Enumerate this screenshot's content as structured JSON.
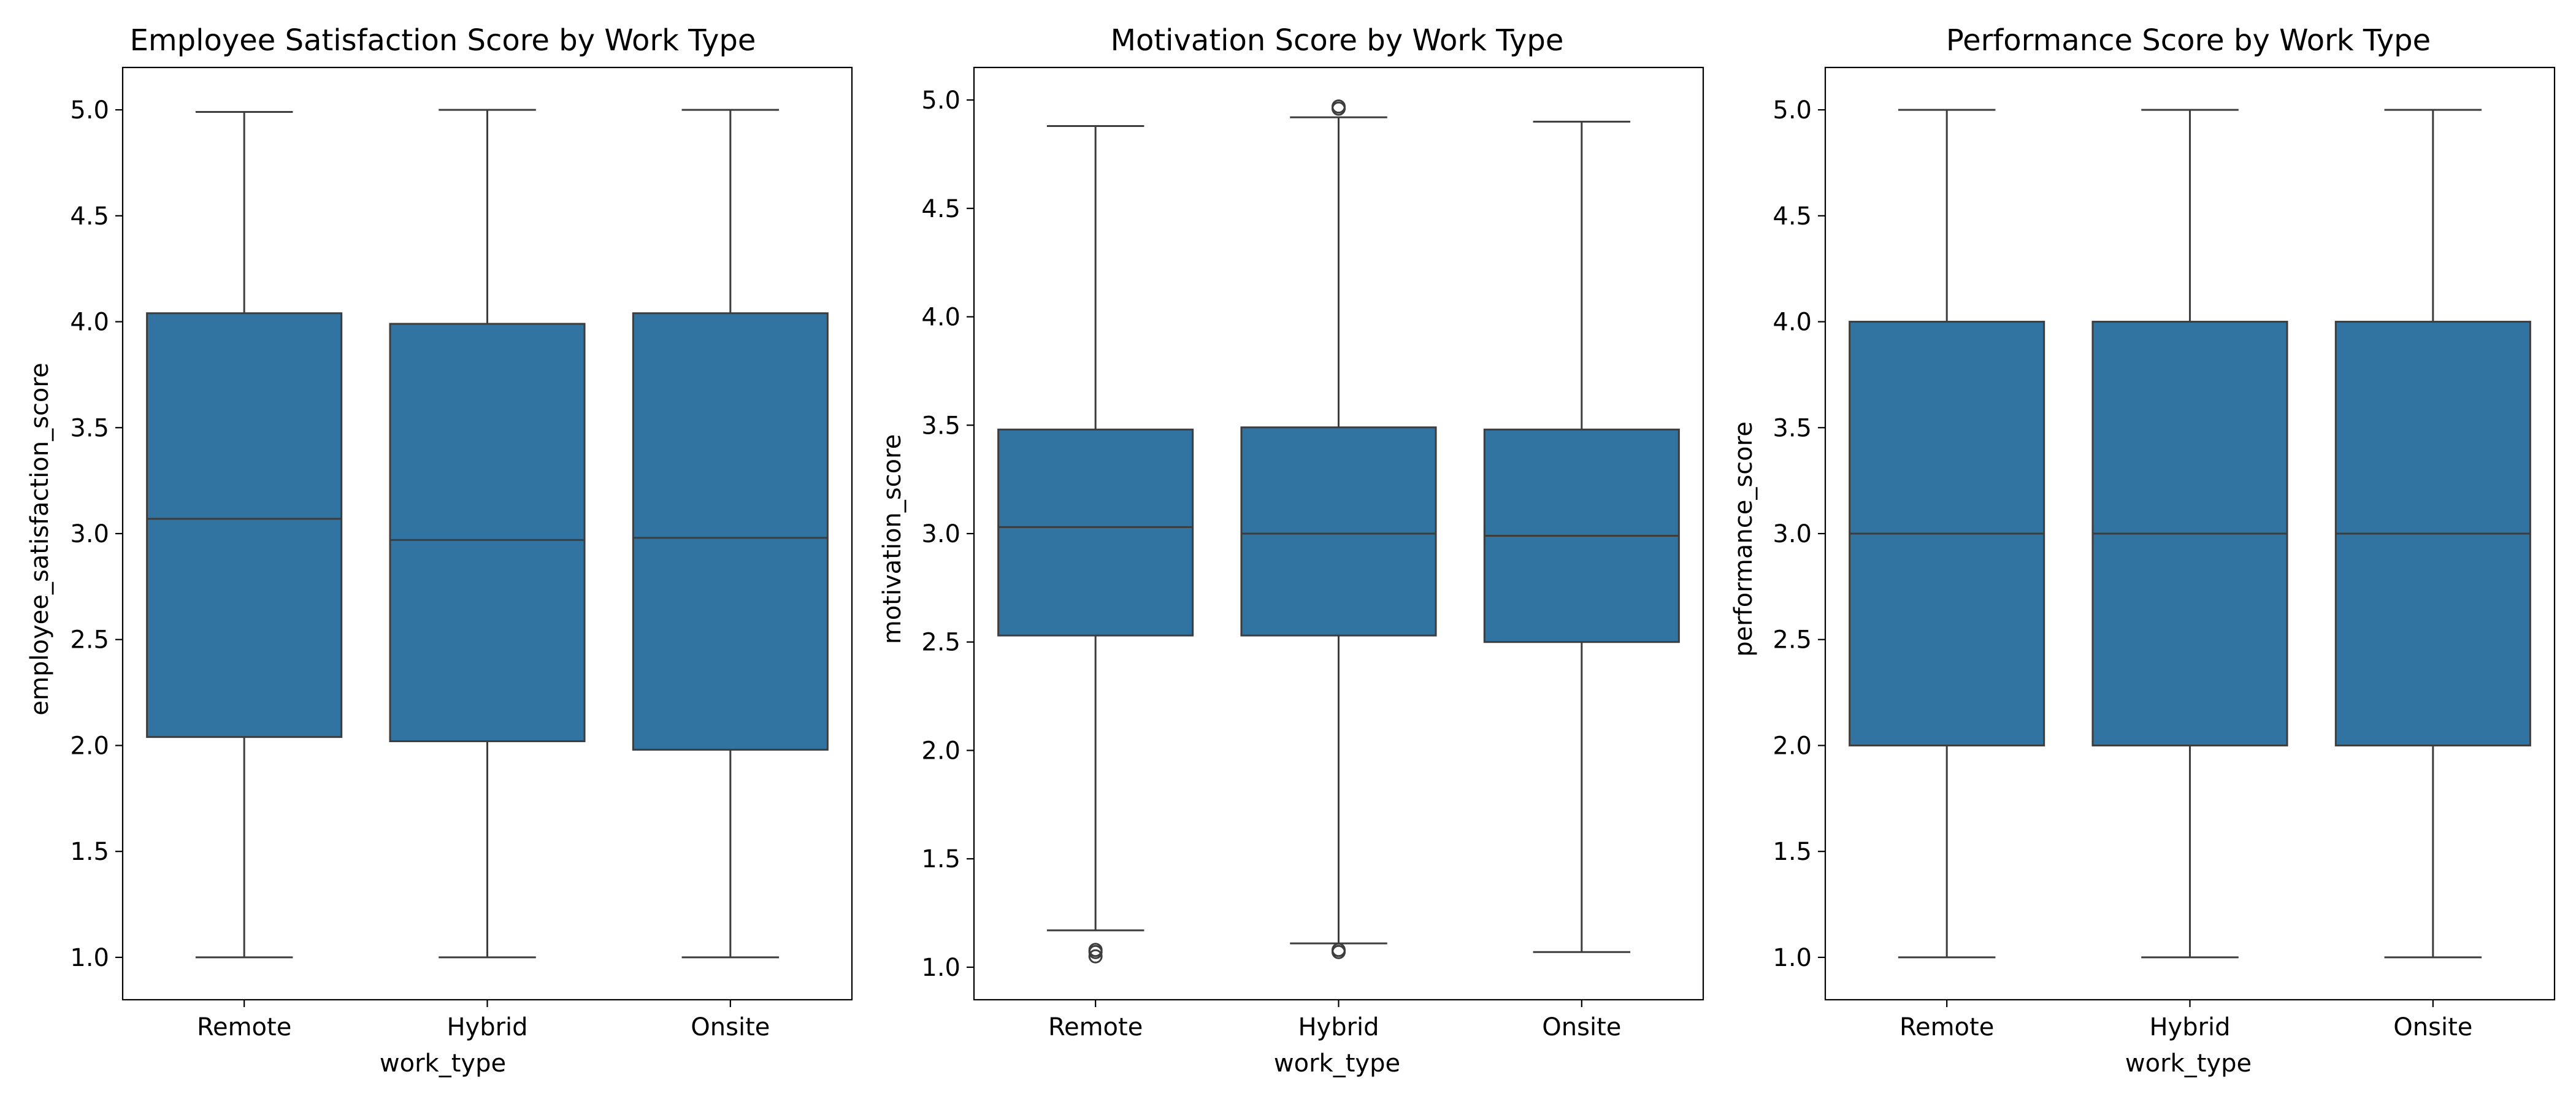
{
  "colors": {
    "box_fill": "#3274a1",
    "line": "#3d3d3d",
    "axes": "#000000",
    "background": "#ffffff"
  },
  "chart_data": [
    {
      "type": "box",
      "title": "Employee Satisfaction Score by Work Type",
      "xlabel": "work_type",
      "ylabel": "employee_satisfaction_score",
      "ylim": [
        0.8,
        5.2
      ],
      "yticks": [
        "1.0",
        "1.5",
        "2.0",
        "2.5",
        "3.0",
        "3.5",
        "4.0",
        "4.5",
        "5.0"
      ],
      "categories": [
        "Remote",
        "Hybrid",
        "Onsite"
      ],
      "boxes": [
        {
          "category": "Remote",
          "whisker_low": 1.0,
          "q1": 2.04,
          "median": 3.07,
          "q3": 4.04,
          "whisker_high": 4.99,
          "fliers": []
        },
        {
          "category": "Hybrid",
          "whisker_low": 1.0,
          "q1": 2.02,
          "median": 2.97,
          "q3": 3.99,
          "whisker_high": 5.0,
          "fliers": []
        },
        {
          "category": "Onsite",
          "whisker_low": 1.0,
          "q1": 1.98,
          "median": 2.98,
          "q3": 4.04,
          "whisker_high": 5.0,
          "fliers": []
        }
      ],
      "grid": false
    },
    {
      "type": "box",
      "title": "Motivation Score by Work Type",
      "xlabel": "work_type",
      "ylabel": "motivation_score",
      "ylim": [
        0.85,
        5.15
      ],
      "yticks": [
        "1.0",
        "1.5",
        "2.0",
        "2.5",
        "3.0",
        "3.5",
        "4.0",
        "4.5",
        "5.0"
      ],
      "categories": [
        "Remote",
        "Hybrid",
        "Onsite"
      ],
      "boxes": [
        {
          "category": "Remote",
          "whisker_low": 1.17,
          "q1": 2.53,
          "median": 3.03,
          "q3": 3.48,
          "whisker_high": 4.88,
          "fliers": [
            1.05,
            1.07,
            1.08
          ]
        },
        {
          "category": "Hybrid",
          "whisker_low": 1.11,
          "q1": 2.53,
          "median": 3.0,
          "q3": 3.49,
          "whisker_high": 4.92,
          "fliers": [
            1.07,
            1.08,
            4.96,
            4.97
          ]
        },
        {
          "category": "Onsite",
          "whisker_low": 1.07,
          "q1": 2.5,
          "median": 2.99,
          "q3": 3.48,
          "whisker_high": 4.9,
          "fliers": []
        }
      ],
      "grid": false
    },
    {
      "type": "box",
      "title": "Performance Score by Work Type",
      "xlabel": "work_type",
      "ylabel": "performance_score",
      "ylim": [
        0.8,
        5.2
      ],
      "yticks": [
        "1.0",
        "1.5",
        "2.0",
        "2.5",
        "3.0",
        "3.5",
        "4.0",
        "4.5",
        "5.0"
      ],
      "categories": [
        "Remote",
        "Hybrid",
        "Onsite"
      ],
      "boxes": [
        {
          "category": "Remote",
          "whisker_low": 1.0,
          "q1": 2.0,
          "median": 3.0,
          "q3": 4.0,
          "whisker_high": 5.0,
          "fliers": []
        },
        {
          "category": "Hybrid",
          "whisker_low": 1.0,
          "q1": 2.0,
          "median": 3.0,
          "q3": 4.0,
          "whisker_high": 5.0,
          "fliers": []
        },
        {
          "category": "Onsite",
          "whisker_low": 1.0,
          "q1": 2.0,
          "median": 3.0,
          "q3": 4.0,
          "whisker_high": 5.0,
          "fliers": []
        }
      ],
      "grid": false
    }
  ]
}
